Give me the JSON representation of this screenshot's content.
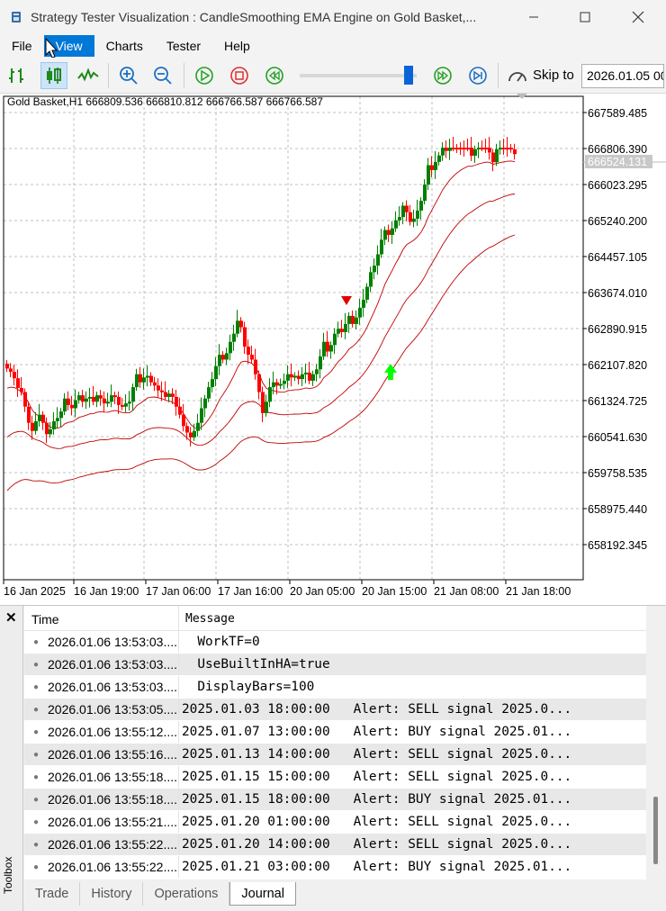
{
  "window": {
    "title": "Strategy Tester Visualization : CandleSmoothing EMA Engine on Gold Basket,..."
  },
  "menu": [
    "File",
    "View",
    "Charts",
    "Tester",
    "Help"
  ],
  "toolbar": {
    "skip_label": "Skip to",
    "skip_date": "2026.01.05 00"
  },
  "chart": {
    "info": "Gold Basket,H1  666809.536 666810.812 666766.587 666766.587",
    "current_price": "666524.131",
    "price_labels": [
      "667589.485",
      "666806.390",
      "666023.295",
      "665240.200",
      "664457.105",
      "663674.010",
      "662890.915",
      "662107.820",
      "661324.725",
      "660541.630",
      "659758.535",
      "658975.440",
      "658192.345"
    ],
    "time_labels": [
      "16 Jan 2025",
      "16 Jan 19:00",
      "17 Jan 06:00",
      "17 Jan 16:00",
      "20 Jan 05:00",
      "20 Jan 15:00",
      "21 Jan 08:00",
      "21 Jan 18:00"
    ],
    "colors": {
      "bull": "#008000",
      "bear": "#ff0000",
      "ema": "#c00000",
      "grid": "#c0c0c0",
      "buy_arrow": "#00ff00",
      "sell_arrow": "#e00000"
    }
  },
  "journal": {
    "headers": {
      "time": "Time",
      "message": "Message"
    },
    "rows": [
      {
        "time": "2026.01.06 13:53:03....",
        "message": "  WorkTF=0"
      },
      {
        "time": "2026.01.06 13:53:03....",
        "message": "  UseBuiltInHA=true"
      },
      {
        "time": "2026.01.06 13:53:03....",
        "message": "  DisplayBars=100"
      },
      {
        "time": "2026.01.06 13:53:05....",
        "message": "2025.01.03 18:00:00   Alert: SELL signal 2025.0..."
      },
      {
        "time": "2026.01.06 13:55:12....",
        "message": "2025.01.07 13:00:00   Alert: BUY signal 2025.01..."
      },
      {
        "time": "2026.01.06 13:55:16....",
        "message": "2025.01.13 14:00:00   Alert: SELL signal 2025.0..."
      },
      {
        "time": "2026.01.06 13:55:18....",
        "message": "2025.01.15 15:00:00   Alert: SELL signal 2025.0..."
      },
      {
        "time": "2026.01.06 13:55:18....",
        "message": "2025.01.15 18:00:00   Alert: BUY signal 2025.01..."
      },
      {
        "time": "2026.01.06 13:55:21....",
        "message": "2025.01.20 01:00:00   Alert: SELL signal 2025.0..."
      },
      {
        "time": "2026.01.06 13:55:22....",
        "message": "2025.01.20 14:00:00   Alert: SELL signal 2025.0..."
      },
      {
        "time": "2026.01.06 13:55:22....",
        "message": "2025.01.21 03:00:00   Alert: BUY signal 2025.01..."
      }
    ]
  },
  "toolbox": {
    "label": "Toolbox",
    "tabs": [
      "Trade",
      "History",
      "Operations",
      "Journal"
    ],
    "active_tab": "Journal"
  }
}
